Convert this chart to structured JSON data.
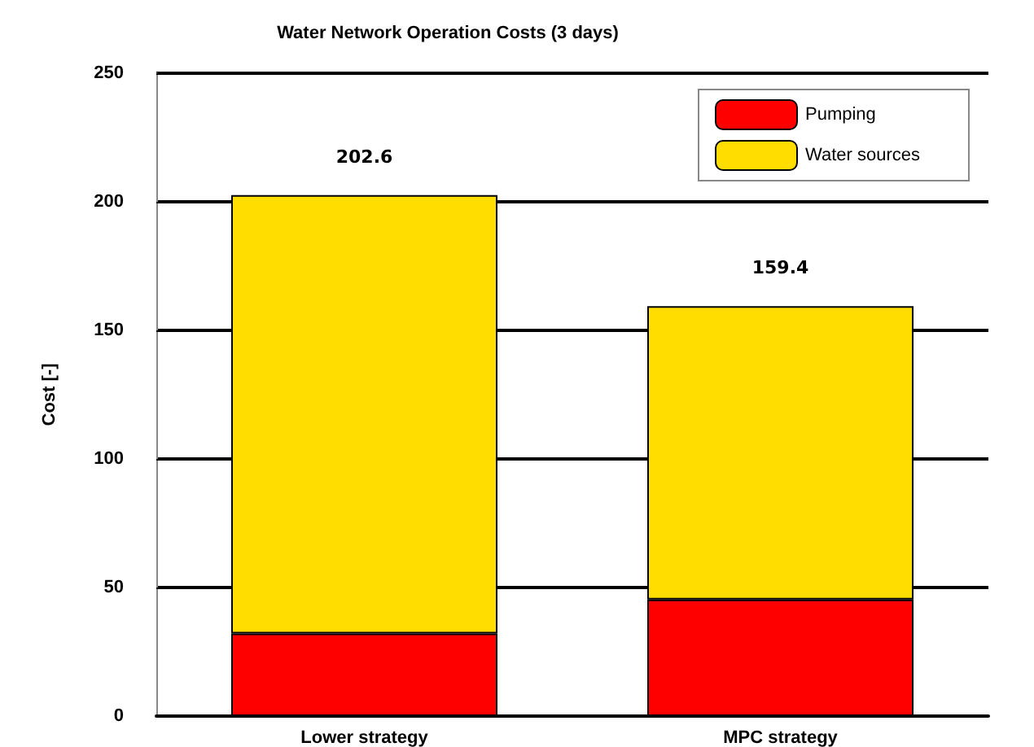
{
  "chart_data": {
    "type": "bar",
    "title": "Water Network Operation Costs (3 days)",
    "ylabel": "Cost [-]",
    "categories": [
      "Lower strategy",
      "MPC strategy"
    ],
    "stacked": true,
    "series": [
      {
        "name": "Pumping",
        "color": "#ff0000",
        "values": [
          32.1,
          45.3
        ]
      },
      {
        "name": "Water sources",
        "color": "#ffdd00",
        "values": [
          170.5,
          114.1
        ]
      }
    ],
    "totals": [
      "202.6",
      "159.4"
    ],
    "ylim": [
      0,
      250
    ],
    "yticks": [
      0,
      50,
      100,
      150,
      200,
      250
    ],
    "grid": "y",
    "legend": "top right"
  }
}
